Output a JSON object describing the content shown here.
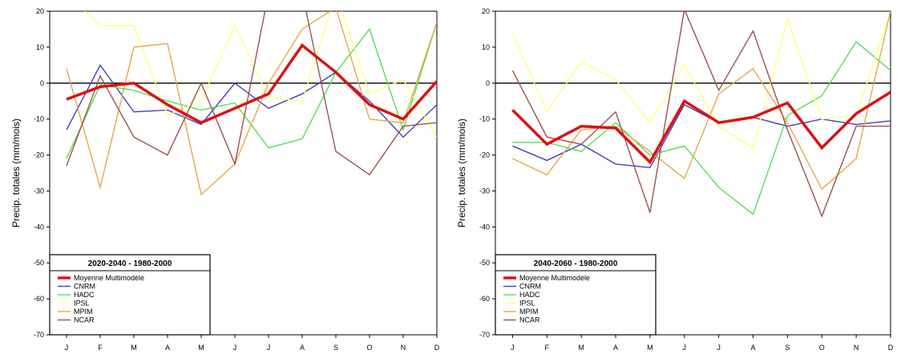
{
  "chart_data": [
    {
      "type": "line",
      "ylabel": "Precip. totales (mm/mois)",
      "ylim": [
        -70,
        20
      ],
      "yticks": [
        20,
        10,
        0,
        -10,
        -20,
        -30,
        -40,
        -50,
        -60,
        -70
      ],
      "categories": [
        "J",
        "F",
        "M",
        "A",
        "M",
        "J",
        "J",
        "A",
        "S",
        "O",
        "N",
        "D"
      ],
      "zero_line": true,
      "legend_title": "2020-2040 - 1980-2000",
      "legend_placement": "bottom-left",
      "series": [
        {
          "name": "Moyenne Multimodèle",
          "color": "#dd1111",
          "width": 3.5,
          "values": [
            -4.5,
            -1,
            0,
            -6,
            -11,
            -7,
            -3,
            10.5,
            3,
            -6,
            -10,
            0.5
          ]
        },
        {
          "name": "CNRM",
          "color": "#4040c0",
          "width": 1.4,
          "values": [
            -13,
            5,
            -8,
            -7.5,
            -11.5,
            0,
            -7,
            -3,
            3,
            -5,
            -15,
            -6
          ]
        },
        {
          "name": "HADC",
          "color": "#55dd55",
          "width": 1.4,
          "values": [
            -21,
            -0.5,
            -2,
            -5,
            -7.5,
            -5.5,
            -18,
            -15.5,
            3,
            15,
            -13,
            17
          ]
        },
        {
          "name": "IPSL",
          "color": "#ffff80",
          "width": 1.4,
          "values": [
            25,
            16,
            16,
            -9,
            -5,
            16,
            -4,
            -5,
            25,
            -3,
            1,
            -15
          ]
        },
        {
          "name": "MPIM",
          "color": "#e8a848",
          "width": 1.4,
          "values": [
            4,
            -29,
            10,
            11,
            -31,
            -22.5,
            0,
            15,
            21,
            -10,
            -11,
            17
          ]
        },
        {
          "name": "NCAR",
          "color": "#a05050",
          "width": 1.4,
          "values": [
            -23,
            2,
            -15,
            -20,
            0,
            -22.5,
            25,
            25,
            -19,
            -25.5,
            -12,
            -11
          ]
        }
      ]
    },
    {
      "type": "line",
      "ylabel": "Precip. totales (mm/mois)",
      "ylim": [
        -70,
        20
      ],
      "yticks": [
        20,
        10,
        0,
        -10,
        -20,
        -30,
        -40,
        -50,
        -60,
        -70
      ],
      "categories": [
        "J",
        "F",
        "M",
        "A",
        "M",
        "J",
        "J",
        "A",
        "S",
        "O",
        "N",
        "D"
      ],
      "zero_line": true,
      "legend_title": "2040-2060 - 1980-2000",
      "legend_placement": "bottom-left",
      "series": [
        {
          "name": "Moyenne Multimodèle",
          "color": "#dd1111",
          "width": 3.5,
          "values": [
            -7.5,
            -17,
            -12,
            -12.5,
            -22,
            -5,
            -11,
            -9.5,
            -5.5,
            -18,
            -8.5,
            -2.5
          ]
        },
        {
          "name": "CNRM",
          "color": "#4040c0",
          "width": 1.4,
          "values": [
            -17.5,
            -21.5,
            -17,
            -22.5,
            -23.5,
            -6,
            -11,
            -9.5,
            -12,
            -10,
            -11.5,
            -10.5
          ]
        },
        {
          "name": "HADC",
          "color": "#55dd55",
          "width": 1.4,
          "values": [
            -16.5,
            -16.5,
            -19,
            -11,
            -20,
            -17.5,
            -29,
            -36.5,
            -9,
            -3.5,
            11.5,
            3.5
          ]
        },
        {
          "name": "IPSL",
          "color": "#ffff80",
          "width": 1.4,
          "values": [
            14,
            -8,
            6,
            1,
            -11,
            5,
            -12,
            -18,
            18,
            -10,
            -9,
            20
          ]
        },
        {
          "name": "MPIM",
          "color": "#e8a848",
          "width": 1.4,
          "values": [
            -21,
            -25.5,
            -13,
            -12,
            -19,
            -26.5,
            -3,
            4,
            -11,
            -29.5,
            -21,
            20
          ]
        },
        {
          "name": "NCAR",
          "color": "#a05050",
          "width": 1.4,
          "values": [
            3.5,
            -15,
            -17,
            -8,
            -36,
            20.5,
            -2,
            14.5,
            -13,
            -37,
            -12,
            -12
          ]
        }
      ]
    }
  ]
}
